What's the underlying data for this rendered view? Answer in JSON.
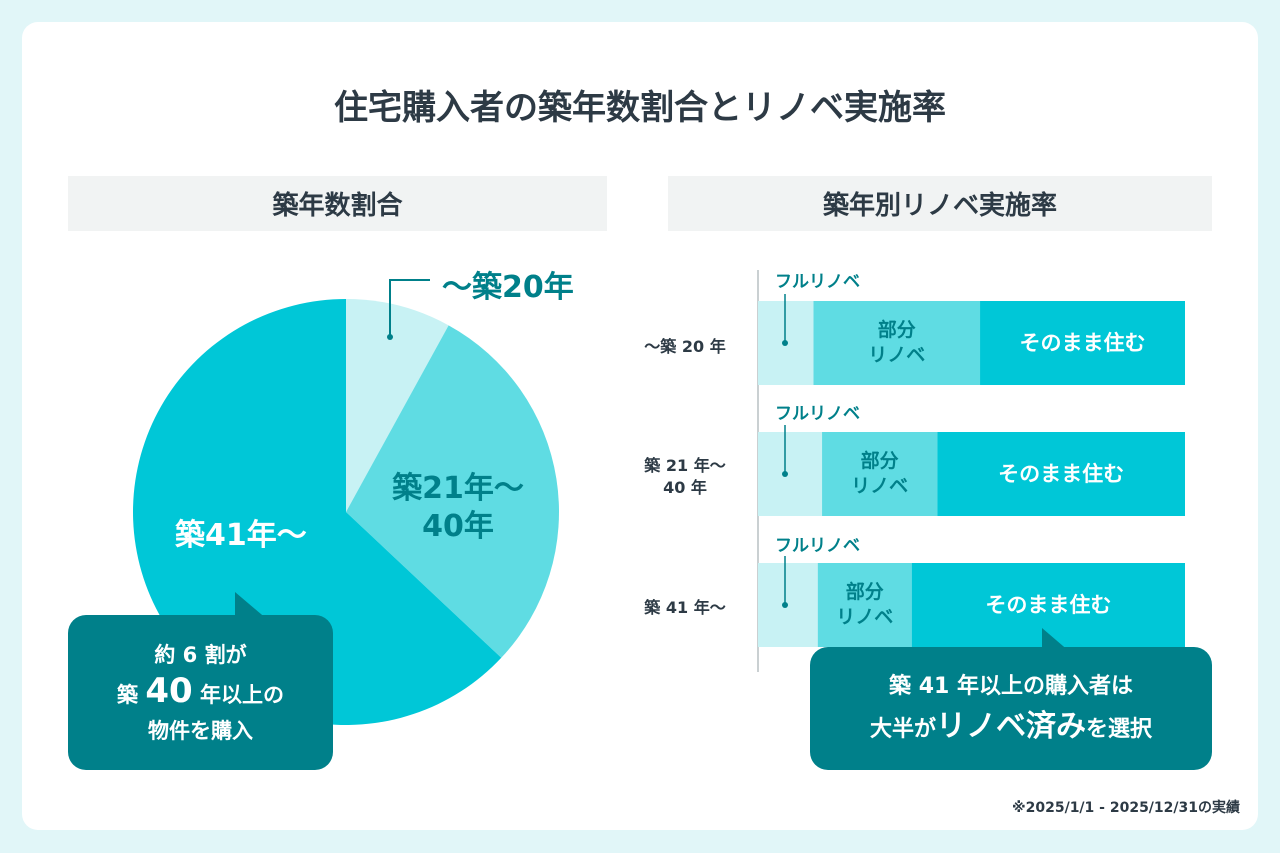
{
  "title": "住宅購入者の築年数割合とリノベ実施率",
  "colors": {
    "light": "#c8f2f4",
    "mid": "#5fdce3",
    "dark": "#00c7d7",
    "teal": "#00808a"
  },
  "chart_data": [
    {
      "type": "pie",
      "title": "築年数割合",
      "slices": [
        {
          "label": "～築20年",
          "value": 8
        },
        {
          "label": "築21年～40年",
          "label_lines": [
            "築21年～",
            "40年"
          ],
          "value": 29
        },
        {
          "label": "築41年～",
          "value": 63
        }
      ],
      "annotation": {
        "line1": "約 6 割が",
        "line2_pre": "築 ",
        "line2_num": "40",
        "line2_post": " 年以上の",
        "line3": "物件を購入"
      }
    },
    {
      "type": "bar",
      "stacked": true,
      "orientation": "horizontal",
      "title": "築年別リノベ実施率",
      "categories": [
        "～築 20 年",
        "築 21 年～40 年",
        "築 41 年～"
      ],
      "category_lines": [
        [
          "～築 20 年"
        ],
        [
          "築 21 年～",
          "40 年"
        ],
        [
          "築 41 年～"
        ]
      ],
      "series": [
        {
          "name": "フルリノベ",
          "values": [
            13,
            15,
            14
          ]
        },
        {
          "name": "部分リノベ",
          "label_lines": [
            "部分",
            "リノベ"
          ],
          "values": [
            39,
            27,
            22
          ]
        },
        {
          "name": "そのまま住む",
          "values": [
            48,
            58,
            64
          ]
        }
      ],
      "annotation": {
        "line1": "築 41 年以上の購入者は",
        "line2_a": "大半が",
        "line2_b": "リノベ済み",
        "line2_c": "を選択"
      }
    }
  ],
  "footnote": "※2025/1/1 - 2025/12/31の実績"
}
